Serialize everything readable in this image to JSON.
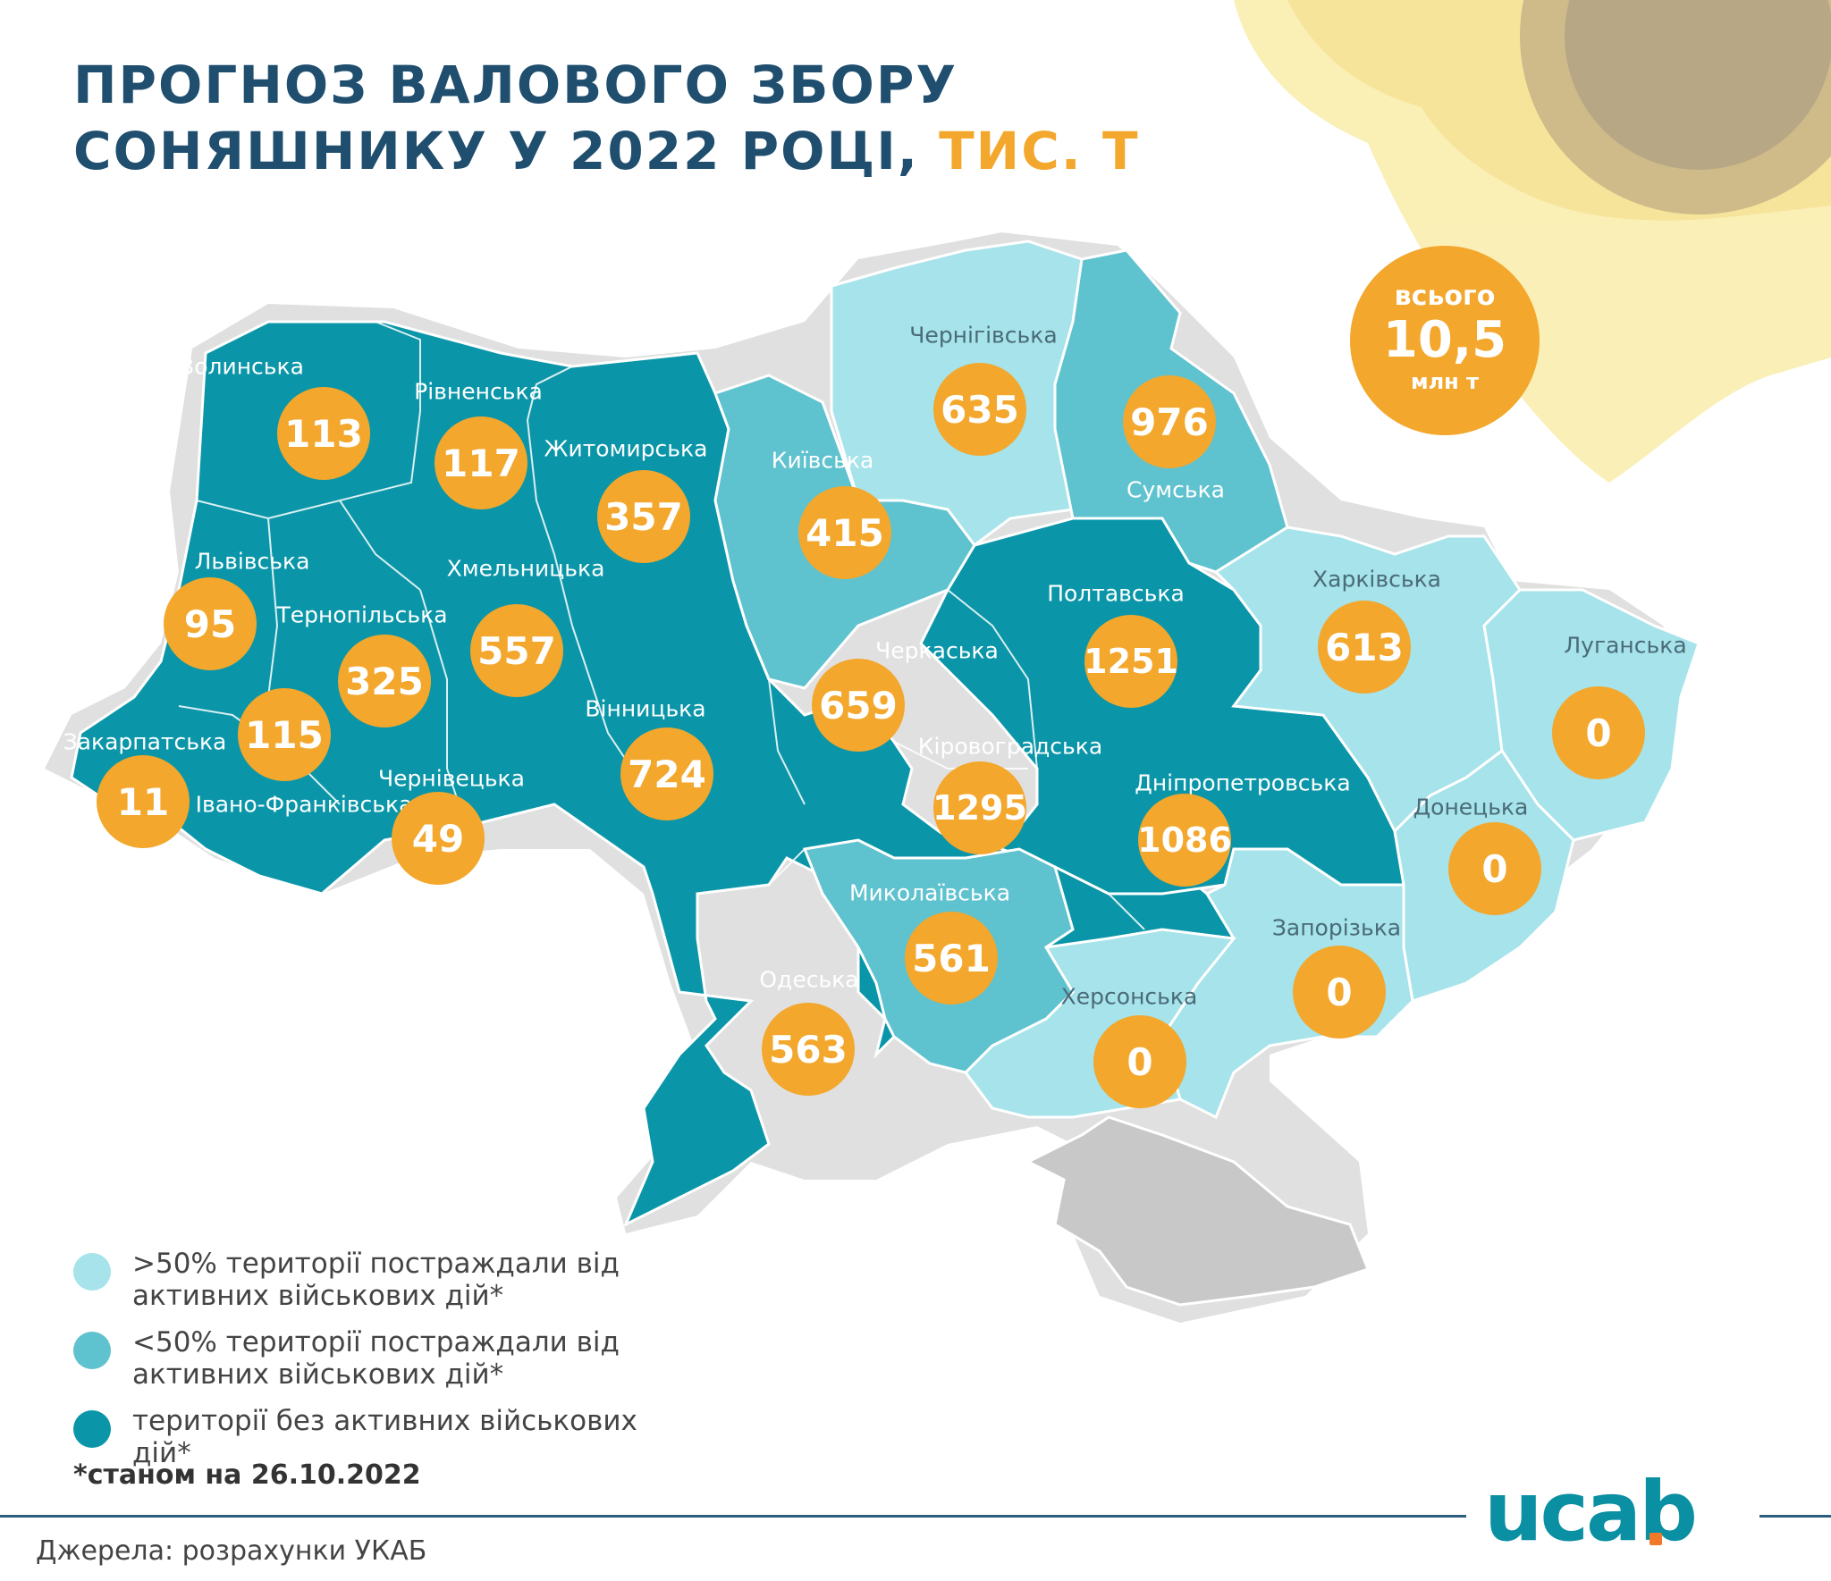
{
  "title": {
    "line1": "ПРОГНОЗ ВАЛОВОГО ЗБОРУ",
    "line2": "СОНЯШНИКУ У 2022 РОЦІ,",
    "unit": "ТИС. Т"
  },
  "total": {
    "label": "всього",
    "value": "10,5",
    "unit": "млн т"
  },
  "colors": {
    "high_affected": "#a6e3ea",
    "low_affected": "#5fc2cf",
    "unaffected": "#0a96a8",
    "occupied": "#c8c8c8",
    "value_circle": "#f3a72c",
    "title": "#1f4e6e"
  },
  "regions": [
    {
      "name": "Волинська",
      "value": "113",
      "category": "unaffected"
    },
    {
      "name": "Рівненська",
      "value": "117",
      "category": "unaffected"
    },
    {
      "name": "Житомирська",
      "value": "357",
      "category": "unaffected"
    },
    {
      "name": "Київська",
      "value": "415",
      "category": "low_affected"
    },
    {
      "name": "Чернігівська",
      "value": "635",
      "category": "high_affected"
    },
    {
      "name": "Сумська",
      "value": "976",
      "category": "low_affected"
    },
    {
      "name": "Львівська",
      "value": "95",
      "category": "unaffected"
    },
    {
      "name": "Тернопільська",
      "value": "325",
      "category": "unaffected"
    },
    {
      "name": "Хмельницька",
      "value": "557",
      "category": "unaffected"
    },
    {
      "name": "Закарпатська",
      "value": "11",
      "category": "unaffected"
    },
    {
      "name": "Івано-Франківська",
      "value": "115",
      "category": "unaffected"
    },
    {
      "name": "Чернівецька",
      "value": "49",
      "category": "unaffected"
    },
    {
      "name": "Вінницька",
      "value": "724",
      "category": "unaffected"
    },
    {
      "name": "Черкаська",
      "value": "659",
      "category": "unaffected"
    },
    {
      "name": "Полтавська",
      "value": "1251",
      "category": "unaffected"
    },
    {
      "name": "Харківська",
      "value": "613",
      "category": "high_affected"
    },
    {
      "name": "Луганська",
      "value": "0",
      "category": "high_affected"
    },
    {
      "name": "Кіровоградська",
      "value": "1295",
      "category": "unaffected"
    },
    {
      "name": "Дніпропетровська",
      "value": "1086",
      "category": "unaffected"
    },
    {
      "name": "Донецька",
      "value": "0",
      "category": "high_affected"
    },
    {
      "name": "Миколаївська",
      "value": "561",
      "category": "low_affected"
    },
    {
      "name": "Одеська",
      "value": "563",
      "category": "unaffected"
    },
    {
      "name": "Запорізька",
      "value": "0",
      "category": "high_affected"
    },
    {
      "name": "Херсонська",
      "value": "0",
      "category": "high_affected"
    }
  ],
  "legend": [
    {
      "text": ">50% території постраждали від активних військових дій*",
      "category": "high_affected"
    },
    {
      "text": "<50% території постраждали від активних військових дій*",
      "category": "low_affected"
    },
    {
      "text": "території без активних військових дій*",
      "category": "unaffected"
    }
  ],
  "footnote": "*станом на 26.10.2022",
  "source": "Джерела: розрахунки УКАБ",
  "logo": "ucab"
}
